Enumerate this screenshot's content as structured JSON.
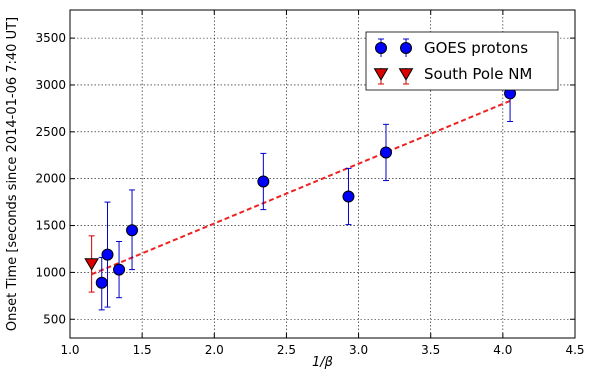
{
  "chart_data": {
    "type": "scatter",
    "xlabel": "1/β",
    "ylabel": "Onset Time [seconds since 2014-01-06 7:40 UT]",
    "xlim": [
      1.0,
      4.5
    ],
    "ylim": [
      300,
      3800
    ],
    "xticks": [
      1.0,
      1.5,
      2.0,
      2.5,
      3.0,
      3.5,
      4.0,
      4.5
    ],
    "xtick_labels": [
      "1.0",
      "1.5",
      "2.0",
      "2.5",
      "3.0",
      "3.5",
      "4.0",
      "4.5"
    ],
    "yticks": [
      500,
      1000,
      1500,
      2000,
      2500,
      3000,
      3500
    ],
    "ytick_labels": [
      "500",
      "1000",
      "1500",
      "2000",
      "2500",
      "3000",
      "3500"
    ],
    "grid": true,
    "legend_position": "top-right",
    "series": [
      {
        "name": "GOES protons",
        "marker": "circle",
        "color": "#0000ff",
        "edge_color": "#000000",
        "errorbar_color": "#0000cc",
        "points": [
          {
            "x": 1.22,
            "y": 890,
            "ylow": 600,
            "yhigh": 1160
          },
          {
            "x": 1.26,
            "y": 1190,
            "ylow": 630,
            "yhigh": 1750
          },
          {
            "x": 1.34,
            "y": 1030,
            "ylow": 730,
            "yhigh": 1330
          },
          {
            "x": 1.43,
            "y": 1450,
            "ylow": 1030,
            "yhigh": 1880
          },
          {
            "x": 2.34,
            "y": 1970,
            "ylow": 1670,
            "yhigh": 2270
          },
          {
            "x": 2.93,
            "y": 1810,
            "ylow": 1510,
            "yhigh": 2110
          },
          {
            "x": 3.19,
            "y": 2280,
            "ylow": 1980,
            "yhigh": 2580
          },
          {
            "x": 4.05,
            "y": 2910,
            "ylow": 2610,
            "yhigh": 3210
          }
        ]
      },
      {
        "name": "South Pole NM",
        "marker": "triangle-down",
        "color": "#dd0000",
        "edge_color": "#000000",
        "errorbar_color": "#cc0000",
        "points": [
          {
            "x": 1.15,
            "y": 1090,
            "ylow": 790,
            "yhigh": 1390
          }
        ]
      }
    ],
    "fit_line": {
      "style": "dashed",
      "color": "#ee2222",
      "x": [
        1.15,
        4.05
      ],
      "y": [
        980,
        2830
      ]
    }
  }
}
